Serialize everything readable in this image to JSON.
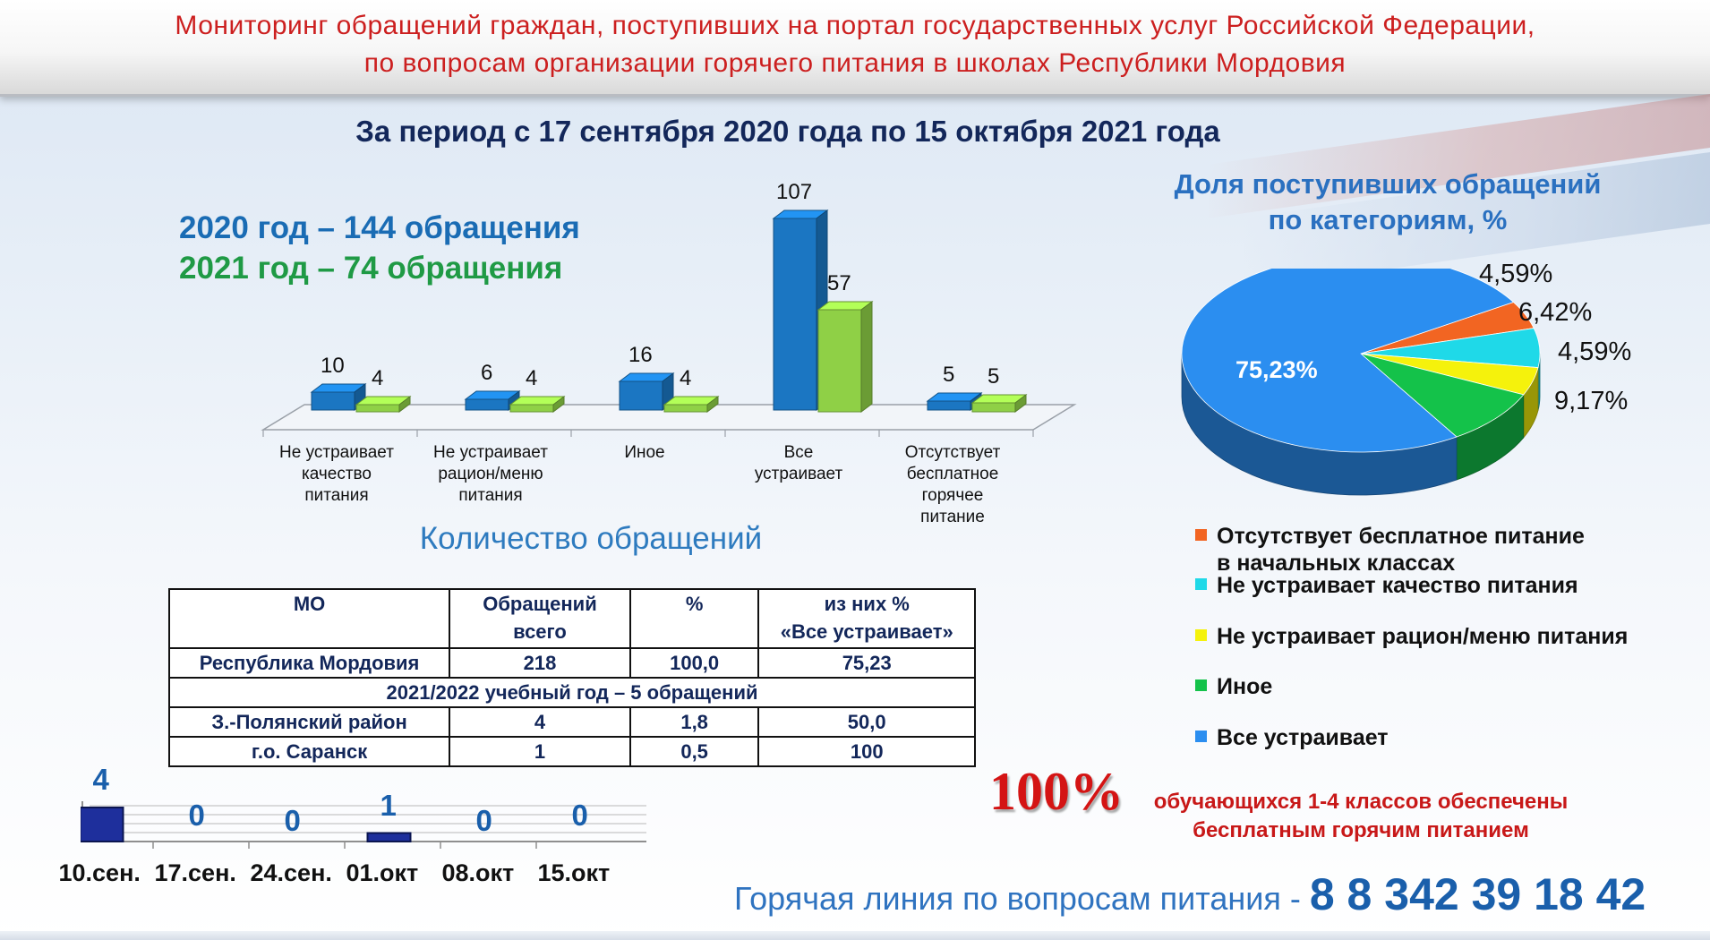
{
  "header": {
    "title_line1": "Мониторинг обращений граждан, поступивших на портал государственных услуг Российской Федерации,",
    "title_line2": "по вопросам организации горячего питания в школах Республики Мордовия"
  },
  "period": "За период с 17 сентября 2020 года по 15 октября 2021 года",
  "year_2020": "2020 год – 144 обращения",
  "year_2021": "2021 год – 74 обращения",
  "colors": {
    "series_2020": "#1b76c2",
    "series_2021": "#8fd046",
    "title_red": "#cc1f1f",
    "navy": "#13275a"
  },
  "chart_data": [
    {
      "type": "bar",
      "categories": [
        "Не устраивает качество питания",
        "Не устраивает рацион/меню питания",
        "Иное",
        "Все устраивает",
        "Отсутствует бесплатное горячее питание"
      ],
      "category_lines": [
        [
          "Не устраивает",
          "качество",
          "питания"
        ],
        [
          "Не устраивает",
          "рацион/меню",
          "питания"
        ],
        [
          "Иное"
        ],
        [
          "Все",
          "устраивает"
        ],
        [
          "Отсутствует",
          "бесплатное",
          "горячее",
          "питание"
        ]
      ],
      "series": [
        {
          "values": [
            10,
            6,
            16,
            107,
            5
          ]
        },
        {
          "values": [
            4,
            4,
            4,
            57,
            5
          ]
        }
      ],
      "ylim": [
        0,
        110
      ],
      "xlabel": "",
      "ylabel": ""
    },
    {
      "type": "pie",
      "title_line1": "Доля поступивших обращений",
      "title_line2": "по категориям, %",
      "slices": [
        {
          "label": "Отсутствует бесплатное питание в начальных классах",
          "value": 4.59,
          "text": "4,59%",
          "color": "#f26522"
        },
        {
          "label": "Не устраивает качество питания",
          "value": 6.42,
          "text": "6,42%",
          "color": "#1fd9e8"
        },
        {
          "label": "Не устраивает рацион/меню питания",
          "value": 4.59,
          "text": "4,59%",
          "color": "#f5f20c"
        },
        {
          "label": "Иное",
          "value": 9.17,
          "text": "9,17%",
          "color": "#14c24a"
        },
        {
          "label": "Все устраивает",
          "value": 75.23,
          "text": "75,23%",
          "color": "#2b8ef0"
        }
      ]
    },
    {
      "type": "bar",
      "categories": [
        "10.сен.",
        "17.сен.",
        "24.сен.",
        "01.окт",
        "08.окт",
        "15.окт"
      ],
      "values": [
        4,
        0,
        0,
        1,
        0,
        0
      ],
      "ylim": [
        0,
        4
      ]
    }
  ],
  "legend": {
    "item1_line1": "Отсутствует бесплатное питание",
    "item1_line2": "в начальных классах",
    "item2": "Не устраивает качество питания",
    "item3": "Не устраивает рацион/меню питания",
    "item4": "Иное",
    "item5": "Все устраивает"
  },
  "count_title": "Количество обращений",
  "table": {
    "h_mo": "МО",
    "h_total_1": "Обращений",
    "h_total_2": "всего",
    "h_pct": "%",
    "h_ok_1": "из них %",
    "h_ok_2": "«Все устраивает»",
    "row1": [
      "Республика Мордовия",
      "218",
      "100,0",
      "75,23"
    ],
    "section": "2021/2022 учебный год – 5 обращений",
    "row2": [
      "З.-Полянский район",
      "4",
      "1,8",
      "50,0"
    ],
    "row3": [
      "г.о. Саранск",
      "1",
      "0,5",
      "100"
    ]
  },
  "percent_100": "100%",
  "students_line1": "обучающихся 1-4  классов обеспечены",
  "students_line2": "бесплатным горячим питанием",
  "hotline_label": "Горячая линия по вопросам питания - ",
  "hotline_number": "8 8 342 39 18 42"
}
